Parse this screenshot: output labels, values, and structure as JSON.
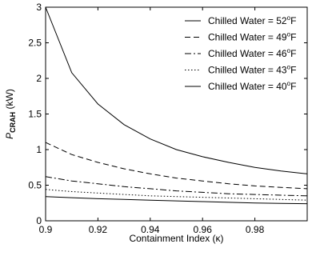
{
  "chart_data": {
    "type": "line",
    "xlabel": "Containment Index (κ)",
    "ylabel": {
      "main": "P",
      "subscript": "CRAH",
      "unit": " (kW)"
    },
    "xlim": [
      0.9,
      1.0
    ],
    "ylim": [
      0,
      3
    ],
    "xticks": [
      0.9,
      0.92,
      0.94,
      0.96,
      0.98
    ],
    "xtick_labels": [
      "0.9",
      "0.92",
      "0.94",
      "0.96",
      "0.98"
    ],
    "yticks": [
      0,
      0.5,
      1,
      1.5,
      2,
      2.5,
      3
    ],
    "ytick_labels": [
      "0",
      "0.5",
      "1",
      "1.5",
      "2",
      "2.5",
      "3"
    ],
    "grid": false,
    "legend_position": "top-right",
    "x": [
      0.9,
      0.91,
      0.92,
      0.93,
      0.94,
      0.95,
      0.96,
      0.97,
      0.98,
      0.99,
      1.0
    ],
    "series": [
      {
        "name": "Chilled Water = 52",
        "unit_sup": "o",
        "unit": "F",
        "style": "solid",
        "values": [
          3.0,
          2.08,
          1.64,
          1.35,
          1.15,
          1.0,
          0.9,
          0.82,
          0.75,
          0.7,
          0.66
        ]
      },
      {
        "name": "Chilled Water = 49",
        "unit_sup": "o",
        "unit": "F",
        "style": "dashed",
        "values": [
          1.1,
          0.93,
          0.82,
          0.73,
          0.66,
          0.6,
          0.56,
          0.52,
          0.49,
          0.47,
          0.45
        ]
      },
      {
        "name": "Chilled Water = 46",
        "unit_sup": "o",
        "unit": "F",
        "style": "dashdot",
        "values": [
          0.62,
          0.56,
          0.52,
          0.48,
          0.45,
          0.42,
          0.4,
          0.38,
          0.37,
          0.36,
          0.35
        ]
      },
      {
        "name": "Chilled Water = 43",
        "unit_sup": "o",
        "unit": "F",
        "style": "dotted",
        "values": [
          0.44,
          0.41,
          0.39,
          0.37,
          0.35,
          0.34,
          0.33,
          0.32,
          0.31,
          0.3,
          0.29
        ]
      },
      {
        "name": "Chilled Water = 40",
        "unit_sup": "o",
        "unit": "F",
        "style": "solid",
        "values": [
          0.34,
          0.325,
          0.31,
          0.3,
          0.29,
          0.28,
          0.27,
          0.26,
          0.25,
          0.245,
          0.24
        ]
      }
    ]
  }
}
